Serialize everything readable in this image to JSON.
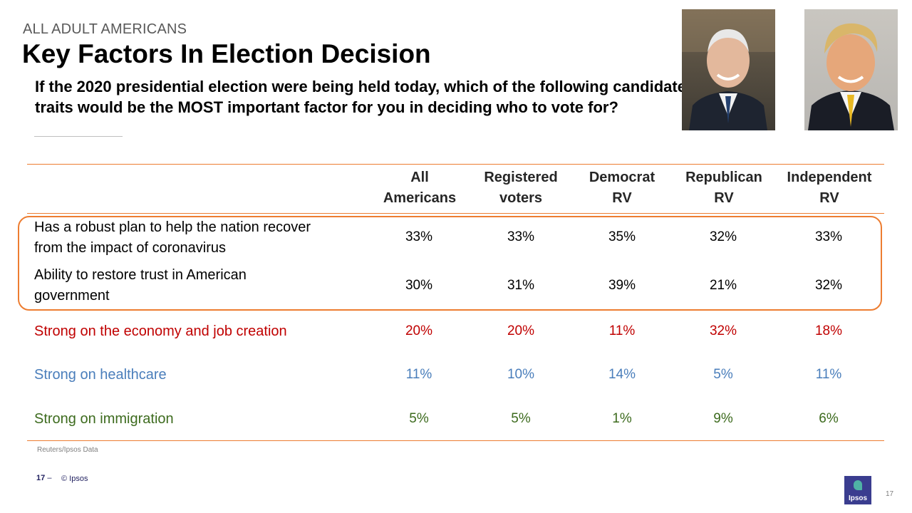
{
  "header": {
    "eyebrow": "ALL ADULT AMERICANS",
    "title": "Key Factors In Election Decision",
    "question": "If the 2020 presidential election were being held today, which of the following candidate traits would be the MOST important factor for you in deciding who to vote for?"
  },
  "photos": [
    {
      "name": "candidate-photo-left"
    },
    {
      "name": "candidate-photo-right"
    }
  ],
  "table": {
    "columns": [
      {
        "line1": "All",
        "line2": "Americans"
      },
      {
        "line1": "Registered",
        "line2": "voters"
      },
      {
        "line1": "Democrat",
        "line2": "RV"
      },
      {
        "line1": "Republican",
        "line2": "RV"
      },
      {
        "line1": "Independent",
        "line2": "RV"
      }
    ],
    "rows": [
      {
        "label_line1": "Has a robust plan to help the nation recover",
        "label_line2": "from the impact of coronavirus",
        "values": [
          "33%",
          "33%",
          "35%",
          "32%",
          "33%"
        ],
        "color": "#000000"
      },
      {
        "label_line1": "Ability to restore trust in American",
        "label_line2": "government",
        "values": [
          "30%",
          "31%",
          "39%",
          "21%",
          "32%"
        ],
        "color": "#000000"
      },
      {
        "label_line1": "Strong on the economy and job creation",
        "label_line2": "",
        "values": [
          "20%",
          "20%",
          "11%",
          "32%",
          "18%"
        ],
        "color": "#c00000"
      },
      {
        "label_line1": "Strong on healthcare",
        "label_line2": "",
        "values": [
          "11%",
          "10%",
          "14%",
          "5%",
          "11%"
        ],
        "color": "#4a7ebb"
      },
      {
        "label_line1": "Strong on immigration",
        "label_line2": "",
        "values": [
          "5%",
          "5%",
          "1%",
          "9%",
          "6%"
        ],
        "color": "#3d6b1e"
      }
    ],
    "highlight_color": "#ed7d31"
  },
  "footer": {
    "source": "Reuters/Ipsos Data",
    "page": "17",
    "separator": "–",
    "copyright": "© Ipsos",
    "logo_text": "Ipsos",
    "slide_number": "17"
  }
}
